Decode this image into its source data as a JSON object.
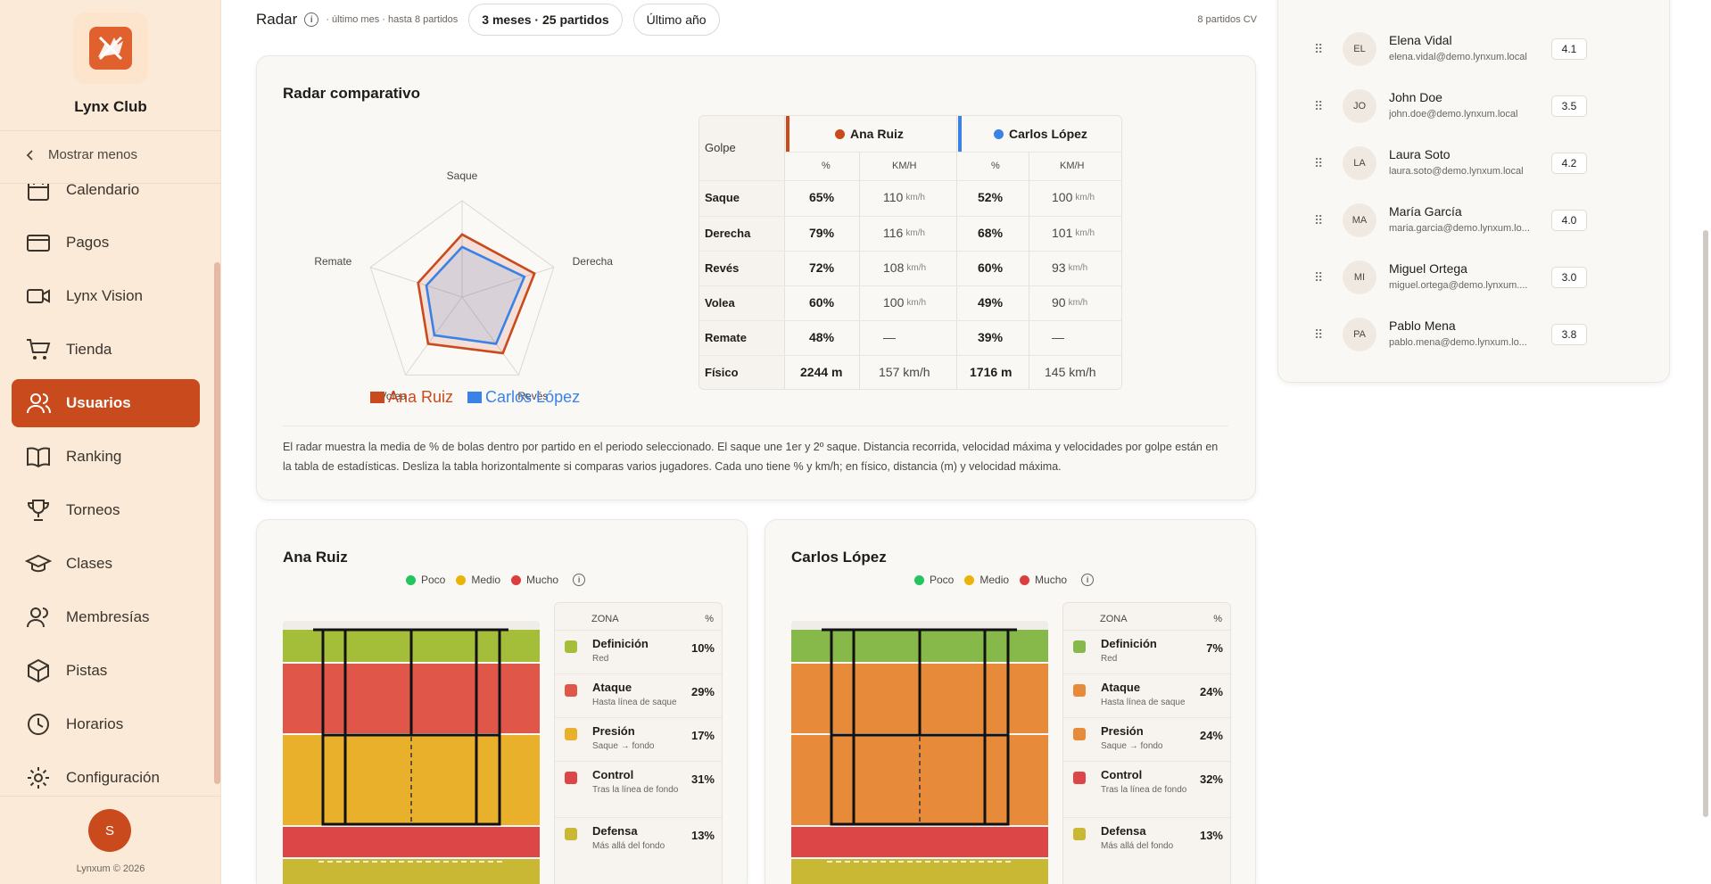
{
  "sidebar": {
    "club_name": "Lynx Club",
    "show_less": "Mostrar menos",
    "items": [
      {
        "label": "Calendario",
        "icon": "calendar-icon"
      },
      {
        "label": "Pagos",
        "icon": "credit-card-icon"
      },
      {
        "label": "Lynx Vision",
        "icon": "video-icon"
      },
      {
        "label": "Tienda",
        "icon": "cart-icon"
      },
      {
        "label": "Usuarios",
        "icon": "users-icon",
        "active": true
      },
      {
        "label": "Ranking",
        "icon": "book-icon"
      },
      {
        "label": "Torneos",
        "icon": "trophy-icon"
      },
      {
        "label": "Clases",
        "icon": "graduation-cap-icon"
      },
      {
        "label": "Membresías",
        "icon": "members-icon"
      },
      {
        "label": "Pistas",
        "icon": "box-icon"
      },
      {
        "label": "Horarios",
        "icon": "clock-icon"
      },
      {
        "label": "Configuración",
        "icon": "gear-icon"
      }
    ],
    "user_initial": "S",
    "copyright": "Lynxum © 2026"
  },
  "topbar": {
    "title": "Radar",
    "subinfo": "· último mes · hasta 8 partidos",
    "pill_1": "3 meses · 25 partidos",
    "pill_2": "Último año",
    "cv_count": "8 partidos CV"
  },
  "radar_card": {
    "title": "Radar comparativo",
    "axes": [
      "Saque",
      "Derecha",
      "Revés",
      "Volea",
      "Remate"
    ],
    "legend": [
      "Ana Ruiz",
      "Carlos López"
    ],
    "series_colors": [
      "#c94a1c",
      "#3b82e6"
    ],
    "table": {
      "golpe_header": "Golpe",
      "players": [
        "Ana Ruiz",
        "Carlos López"
      ],
      "pct_header": "%",
      "speed_header": "KM/H",
      "unit": "km/h",
      "rows": [
        {
          "label": "Saque",
          "a_pct": "65%",
          "a_kmh": "110",
          "b_pct": "52%",
          "b_kmh": "100"
        },
        {
          "label": "Derecha",
          "a_pct": "79%",
          "a_kmh": "116",
          "b_pct": "68%",
          "b_kmh": "101"
        },
        {
          "label": "Revés",
          "a_pct": "72%",
          "a_kmh": "108",
          "b_pct": "60%",
          "b_kmh": "93"
        },
        {
          "label": "Volea",
          "a_pct": "60%",
          "a_kmh": "100",
          "b_pct": "49%",
          "b_kmh": "90"
        },
        {
          "label": "Remate",
          "a_pct": "48%",
          "a_kmh": "—",
          "b_pct": "39%",
          "b_kmh": "—"
        }
      ],
      "fisico": {
        "label": "Físico",
        "a_dist": "2244 m",
        "a_speed": "157 km/h",
        "b_dist": "1716 m",
        "b_speed": "145 km/h"
      }
    },
    "note": "El radar muestra la media de % de bolas dentro por partido en el periodo seleccionado. El saque une 1er y 2º saque. Distancia recorrida, velocidad máxima y velocidades por golpe están en la tabla de estadísticas. Desliza la tabla horizontalmente si comparas varios jugadores. Cada uno tiene % y km/h; en físico, distancia (m) y velocidad máxima."
  },
  "chart_data": {
    "type": "radar",
    "axes": [
      "Saque",
      "Derecha",
      "Revés",
      "Volea",
      "Remate"
    ],
    "series": [
      {
        "name": "Ana Ruiz",
        "values": [
          65,
          79,
          72,
          60,
          48
        ]
      },
      {
        "name": "Carlos López",
        "values": [
          52,
          68,
          60,
          49,
          39
        ]
      }
    ],
    "range": [
      0,
      100
    ]
  },
  "zones_legend": {
    "low": "Poco",
    "mid": "Medio",
    "high": "Mucho"
  },
  "zone_headers": {
    "zone": "ZONA",
    "pct": "%"
  },
  "zone_cards": [
    {
      "player": "Ana Ruiz",
      "zones": [
        {
          "name": "Definición",
          "sub": "Red",
          "pct": "10%",
          "color": "#a5be3a"
        },
        {
          "name": "Ataque",
          "sub": "Hasta línea de saque",
          "pct": "29%",
          "color": "#e0574a"
        },
        {
          "name": "Presión",
          "sub": "Saque → fondo",
          "pct": "17%",
          "color": "#e9b02c"
        },
        {
          "name": "Control",
          "sub": "Tras la línea de fondo",
          "pct": "31%",
          "color": "#dd4646"
        },
        {
          "name": "Defensa",
          "sub": "Más allá del fondo",
          "pct": "13%",
          "color": "#c8b834"
        }
      ]
    },
    {
      "player": "Carlos López",
      "zones": [
        {
          "name": "Definición",
          "sub": "Red",
          "pct": "7%",
          "color": "#86b84a"
        },
        {
          "name": "Ataque",
          "sub": "Hasta línea de saque",
          "pct": "24%",
          "color": "#e78a3a"
        },
        {
          "name": "Presión",
          "sub": "Saque → fondo",
          "pct": "24%",
          "color": "#e78a3a"
        },
        {
          "name": "Control",
          "sub": "Tras la línea de fondo",
          "pct": "32%",
          "color": "#dd4646"
        },
        {
          "name": "Defensa",
          "sub": "Más allá del fondo",
          "pct": "13%",
          "color": "#c8b834"
        }
      ]
    }
  ],
  "users": [
    {
      "initials": "EL",
      "name": "Elena Vidal",
      "email": "elena.vidal@demo.lynxum.local",
      "level": "4.1"
    },
    {
      "initials": "JO",
      "name": "John Doe",
      "email": "john.doe@demo.lynxum.local",
      "level": "3.5"
    },
    {
      "initials": "LA",
      "name": "Laura Soto",
      "email": "laura.soto@demo.lynxum.local",
      "level": "4.2"
    },
    {
      "initials": "MA",
      "name": "María García",
      "email": "maria.garcia@demo.lynxum.lo...",
      "level": "4.0"
    },
    {
      "initials": "MI",
      "name": "Miguel Ortega",
      "email": "miguel.ortega@demo.lynxum....",
      "level": "3.0"
    },
    {
      "initials": "PA",
      "name": "Pablo Mena",
      "email": "pablo.mena@demo.lynxum.lo...",
      "level": "3.8"
    }
  ]
}
